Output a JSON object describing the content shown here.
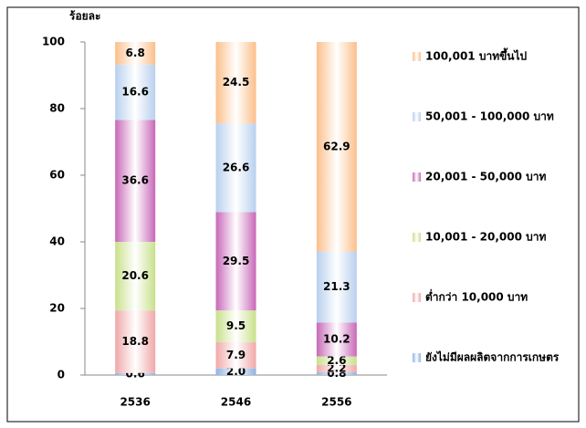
{
  "chart_data": {
    "type": "stacked_bar",
    "ylabel": "ร้อยละ",
    "categories": [
      "2536",
      "2546",
      "2556"
    ],
    "ylim": [
      0,
      100
    ],
    "yticks": [
      0,
      20,
      40,
      60,
      80,
      100
    ],
    "legend": "right",
    "series": [
      {
        "name": "ยังไม่มีผลผลิตจากการเกษตร",
        "color": "#8db3e2",
        "values": [
          0.6,
          2,
          0.8
        ],
        "value_labels": [
          "0.6",
          "2.0",
          "0.8"
        ]
      },
      {
        "name": "ต่ำกว่า 10,000 บาท",
        "color": "#f0a8a8",
        "values": [
          18.8,
          7.9,
          2.2
        ]
      },
      {
        "name": "10,001 - 20,000 บาท",
        "color": "#c9e08a",
        "values": [
          20.6,
          9.5,
          2.6
        ]
      },
      {
        "name": "20,001 - 50,000 บาท",
        "color": "#c868b8",
        "values": [
          36.6,
          29.5,
          10.2
        ]
      },
      {
        "name": "50,001 - 100,000 บาท",
        "color": "#b8d0ee",
        "values": [
          16.6,
          26.6,
          21.3
        ]
      },
      {
        "name": "100,001 บาทขึ้นไป",
        "color": "#fbbf8a",
        "values": [
          6.8,
          24.5,
          62.9
        ]
      }
    ]
  }
}
